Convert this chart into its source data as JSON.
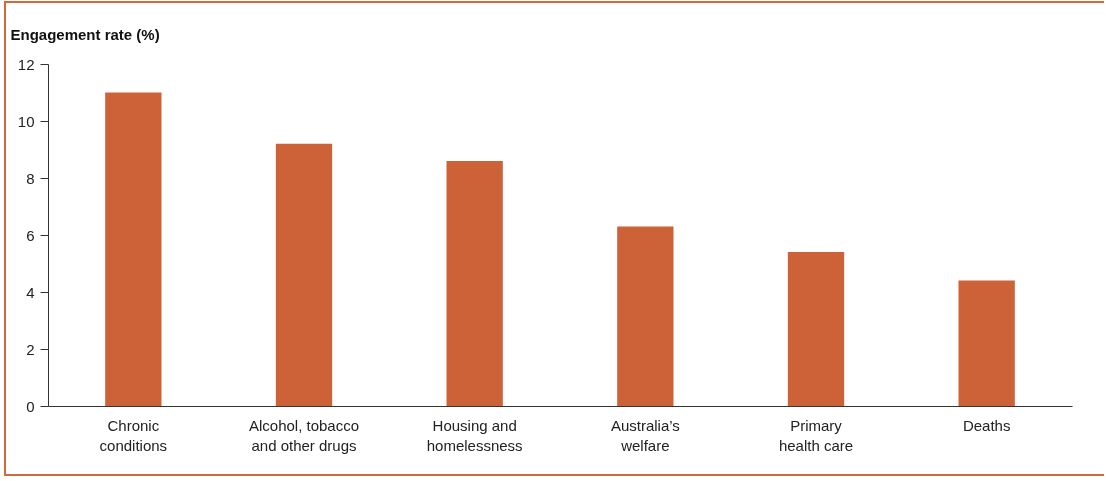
{
  "chart_data": {
    "type": "bar",
    "ylabel": "Engagement rate (%)",
    "categories": [
      "Chronic conditions",
      "Alcohol, tobacco and other drugs",
      "Housing and homelessness",
      "Australia’s welfare",
      "Primary health care",
      "Deaths"
    ],
    "values": [
      11.0,
      9.2,
      8.6,
      6.3,
      5.4,
      4.4
    ],
    "color": "#cd6239",
    "ylim": [
      0,
      12
    ],
    "yticks": [
      0,
      2,
      4,
      6,
      8,
      10,
      12
    ],
    "grid": false
  }
}
